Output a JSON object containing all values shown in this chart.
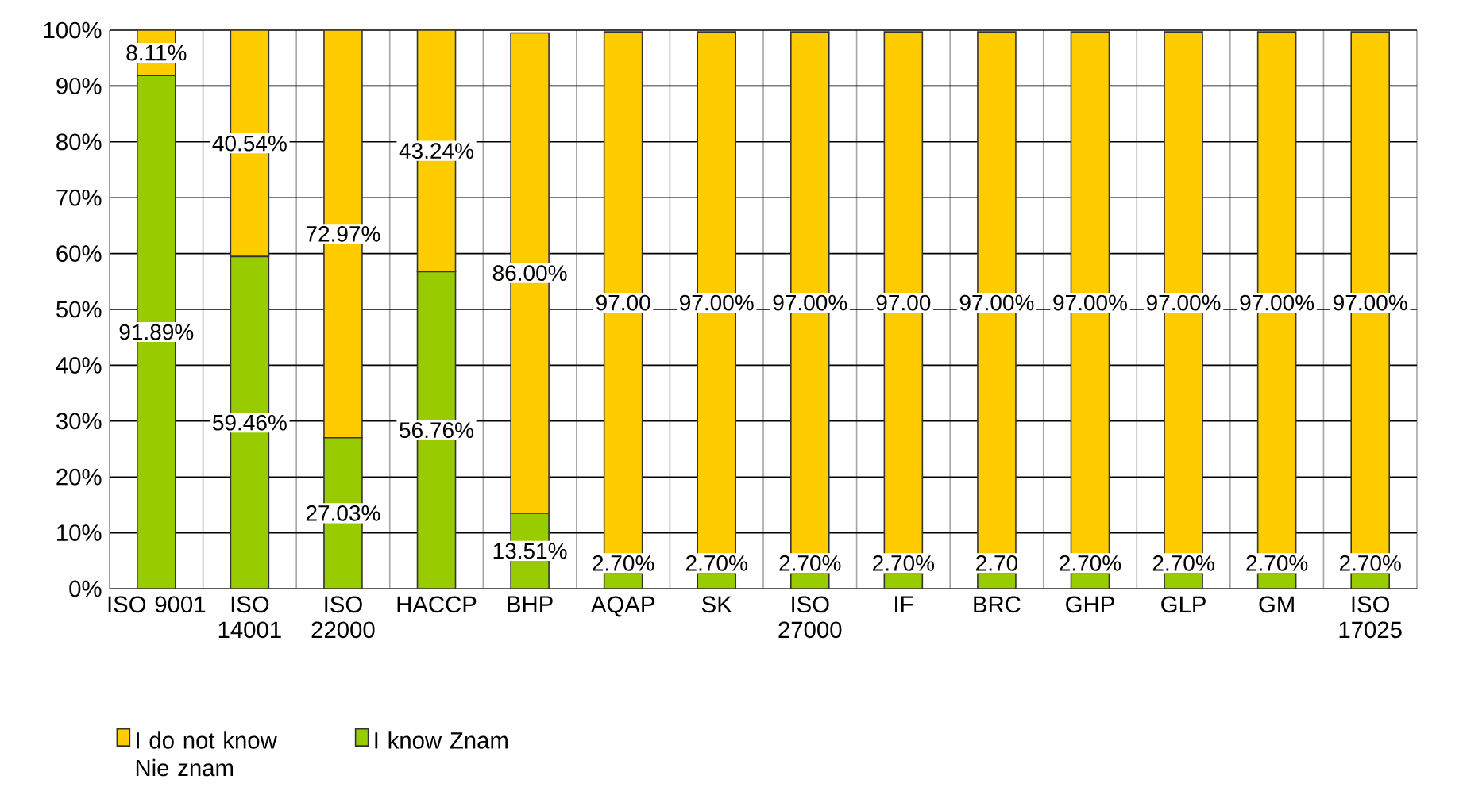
{
  "chart_data": {
    "type": "bar",
    "stacked": true,
    "categories": [
      "ISO 9001",
      "ISO 14001",
      "ISO 22000",
      "HACCP",
      "BHP",
      "AQAP",
      "SK",
      "ISO 27000",
      "IF",
      "BRC",
      "GHP",
      "GLP",
      "GM",
      "ISO 17025"
    ],
    "series": [
      {
        "name": "I know Znam",
        "color": "#99cc00",
        "values": [
          91.89,
          59.46,
          27.03,
          56.76,
          13.51,
          2.7,
          2.7,
          2.7,
          2.7,
          2.7,
          2.7,
          2.7,
          2.7,
          2.7
        ],
        "value_labels": [
          "91.89%",
          "59.46%",
          "27.03%",
          "56.76%",
          "13.51%",
          "2.70%",
          "2.70%",
          "2.70%",
          "2.70%",
          "2.70",
          "2.70%",
          "2.70%",
          "2.70%",
          "2.70%"
        ]
      },
      {
        "name": "I do not know Nie znam",
        "color": "#ffcc00",
        "values": [
          8.11,
          40.54,
          72.97,
          43.24,
          86.0,
          97.0,
          97.0,
          97.0,
          97.0,
          97.0,
          97.0,
          97.0,
          97.0,
          97.0
        ],
        "value_labels": [
          "8.11%",
          "40.54%",
          "72.97%",
          "43.24%",
          "86.00%",
          "97.00",
          "97.00%",
          "97.00%",
          "97.00",
          "97.00%",
          "97.00%",
          "97.00%",
          "97.00%",
          "97.00%"
        ]
      }
    ],
    "ylim": [
      0,
      100
    ],
    "yticks": [
      {
        "value": 0,
        "label": "0%"
      },
      {
        "value": 10,
        "label": "10%"
      },
      {
        "value": 20,
        "label": "20%"
      },
      {
        "value": 30,
        "label": "30%"
      },
      {
        "value": 40,
        "label": "40%"
      },
      {
        "value": 50,
        "label": "50%"
      },
      {
        "value": 60,
        "label": "60%"
      },
      {
        "value": 70,
        "label": "70%"
      },
      {
        "value": 80,
        "label": "80%"
      },
      {
        "value": 90,
        "label": "90%"
      },
      {
        "value": 100,
        "label": "100%"
      }
    ],
    "grid": true,
    "legend": "bottom left"
  }
}
